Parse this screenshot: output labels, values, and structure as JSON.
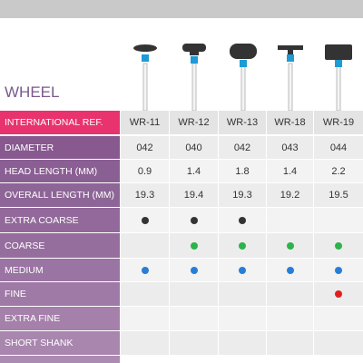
{
  "title": "WHEEL",
  "table": {
    "header": [
      "INTERNATIONAL REF.",
      "WR-11",
      "WR-12",
      "WR-13",
      "WR-18",
      "WR-19"
    ],
    "rows": [
      {
        "label": "DIAMETER",
        "values": [
          "042",
          "040",
          "042",
          "043",
          "044"
        ]
      },
      {
        "label": "HEAD LENGTH (MM)",
        "values": [
          "0.9",
          "1.4",
          "1.8",
          "1.4",
          "2.2"
        ]
      },
      {
        "label": "OVERALL LENGTH (MM)",
        "values": [
          "19.3",
          "19.4",
          "19.3",
          "19.2",
          "19.5"
        ]
      },
      {
        "label": "EXTRA COARSE",
        "dots": [
          "#333333",
          "#333333",
          "#333333",
          null,
          null
        ]
      },
      {
        "label": "COARSE",
        "dots": [
          null,
          "#2db34a",
          "#2db34a",
          "#2db34a",
          "#2db34a"
        ]
      },
      {
        "label": "MEDIUM",
        "dots": [
          "#2a7dd4",
          "#2a7dd4",
          "#2a7dd4",
          "#2a7dd4",
          "#2a7dd4"
        ]
      },
      {
        "label": "FINE",
        "dots": [
          null,
          null,
          null,
          null,
          "#e0201e"
        ]
      },
      {
        "label": "EXTRA FINE",
        "dots": [
          null,
          null,
          null,
          null,
          null
        ]
      },
      {
        "label": "SHORT SHANK",
        "dots": [
          null,
          null,
          null,
          null,
          null
        ]
      }
    ]
  }
}
